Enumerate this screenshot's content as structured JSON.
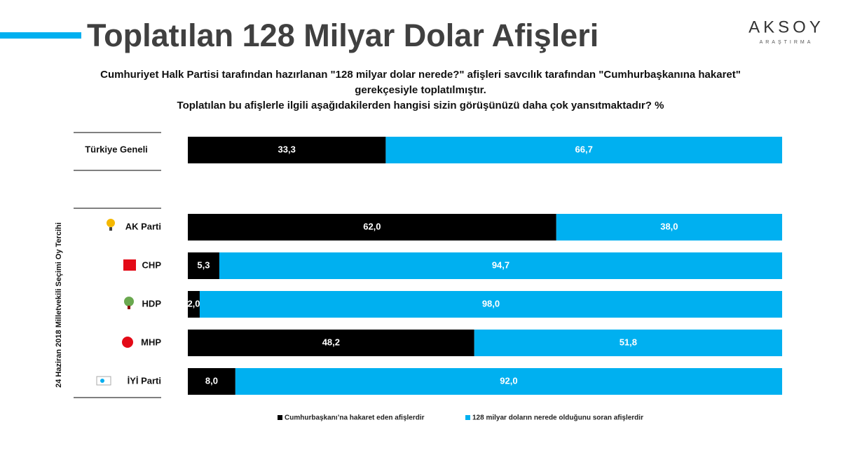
{
  "chart_data": {
    "type": "stacked-bar-horizontal",
    "title": "Toplatılan 128 Milyar Dolar Afişleri",
    "subtitle": [
      "Cumhuriyet Halk Partisi tarafından hazırlanan \"128 milyar dolar nerede?\" afişleri savcılık tarafından \"Cumhurbaşkanına hakaret\"",
      "gerekçesiyle toplatılmıştır.",
      "Toplatılan bu afişlerle ilgili aşağıdakilerden hangisi sizin görüşünüzü daha çok yansıtmaktadır? %"
    ],
    "group_label": "24 Haziran 2018 Milletvekili Seçimi Oy Tercihi",
    "brand": "AKSOY",
    "brand_sub": "ARAŞTIRMA",
    "categories": [
      "Türkiye Geneli",
      "AK Parti",
      "CHP",
      "HDP",
      "MHP",
      "İYİ Parti"
    ],
    "series": [
      {
        "name": "Cumhurbaşkanı’na hakaret eden afişlerdir",
        "color": "#000000",
        "values": [
          33.3,
          62.0,
          5.3,
          2.0,
          48.2,
          8.0
        ],
        "value_labels": [
          "33,3",
          "62,0",
          "5,3",
          "2,0",
          "48,2",
          "8,0"
        ]
      },
      {
        "name": "128 milyar doların nerede olduğunu soran afişlerdir",
        "color": "#00b0f0",
        "values": [
          66.7,
          38.0,
          94.7,
          98.0,
          51.8,
          92.0
        ],
        "value_labels": [
          "66,7",
          "38,0",
          "94,7",
          "98,0",
          "51,8",
          "92,0"
        ]
      }
    ]
  }
}
